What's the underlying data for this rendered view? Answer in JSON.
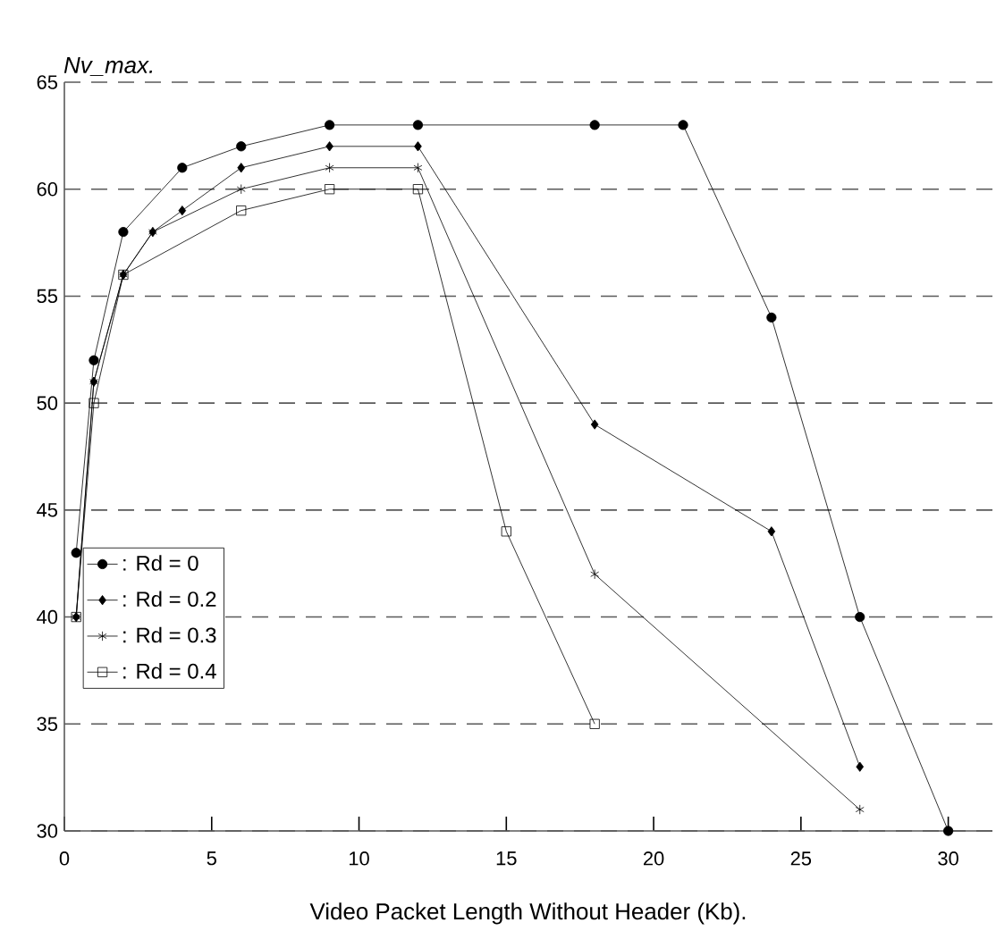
{
  "chart_data": {
    "type": "line",
    "xlabel": "Video Packet Length Without Header (Kb).",
    "ylabel": "Nv_max.",
    "xlim": [
      0,
      31.5
    ],
    "ylim": [
      30,
      65
    ],
    "xticks": [
      0,
      5,
      10,
      15,
      20,
      25,
      30
    ],
    "yticks": [
      30,
      35,
      40,
      45,
      50,
      55,
      60,
      65
    ],
    "grid": "y",
    "legend": "bottom left",
    "line_style": "solid",
    "series": [
      {
        "name": ": Rd = 0",
        "color": "#000000",
        "marker": "circle",
        "x": [
          0.4,
          1,
          2,
          4,
          6,
          9,
          12,
          18,
          21,
          24,
          27,
          30
        ],
        "values": [
          43,
          52,
          58,
          61,
          62,
          63,
          63,
          63,
          63,
          54,
          40,
          30
        ]
      },
      {
        "name": ": Rd = 0.2",
        "color": "#000000",
        "marker": "diamond",
        "x": [
          0.4,
          1,
          2,
          3,
          4,
          6,
          9,
          12,
          18,
          24,
          27
        ],
        "values": [
          40,
          51,
          56,
          58,
          59,
          61,
          62,
          62,
          49,
          44,
          33
        ]
      },
      {
        "name": ": Rd = 0.3",
        "color": "#000000",
        "marker": "cross",
        "x": [
          0.4,
          1,
          2,
          3,
          6,
          9,
          12,
          18,
          27
        ],
        "values": [
          40,
          51,
          56,
          58,
          60,
          61,
          61,
          42,
          31
        ]
      },
      {
        "name": ": Rd = 0.4",
        "color": "#000000",
        "marker": "square",
        "x": [
          0.4,
          1,
          2,
          6,
          9,
          12,
          15,
          18
        ],
        "values": [
          40,
          50,
          56,
          59,
          60,
          60,
          44,
          35
        ]
      }
    ]
  }
}
